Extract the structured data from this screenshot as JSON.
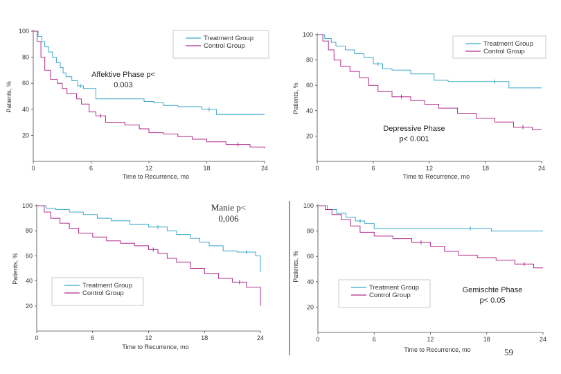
{
  "page_number": "59",
  "colors": {
    "treatment": "#3aa7c9",
    "control": "#b02a8a",
    "divider": "#2b8fa8",
    "axis": "#444444",
    "legend_border": "#c8c8c8"
  },
  "chart_data": [
    {
      "type": "line",
      "subtype": "kaplan-meier",
      "title": "Affektive Phase",
      "annotation_lines": [
        "Affektive Phase p<",
        "0.003"
      ],
      "xlabel": "Time to Recurrence, mo",
      "ylabel": "Patients, %",
      "xlim": [
        0,
        24
      ],
      "ylim": [
        0,
        100
      ],
      "xticks": [
        "0",
        "6",
        "12",
        "18",
        "24"
      ],
      "yticks": [
        "100",
        "80",
        "60",
        "40",
        "20"
      ],
      "legend": [
        "Treatment Group",
        "Control Group"
      ],
      "legend_position": "top-right",
      "series": [
        {
          "name": "Treatment Group",
          "x": [
            0,
            0.5,
            0.9,
            1.2,
            1.6,
            2.0,
            2.4,
            2.8,
            3.1,
            3.4,
            4.0,
            4.6,
            5.2,
            6.5,
            8.0,
            11.5,
            12.5,
            13.5,
            15.0,
            17.5,
            19.0,
            24
          ],
          "y": [
            100,
            96,
            92,
            88,
            84,
            80,
            76,
            72,
            68,
            65,
            62,
            58,
            56,
            48,
            48,
            46,
            45,
            43,
            42,
            40,
            36,
            36
          ]
        },
        {
          "name": "Control Group",
          "x": [
            0,
            0.4,
            0.8,
            1.2,
            1.8,
            2.5,
            3.0,
            3.5,
            4.5,
            5.0,
            5.8,
            6.5,
            7.5,
            9.5,
            11.0,
            12.0,
            13.5,
            15.0,
            16.5,
            18.0,
            20.0,
            22.5,
            24
          ],
          "y": [
            100,
            92,
            80,
            70,
            63,
            60,
            56,
            52,
            48,
            44,
            38,
            35,
            30,
            28,
            25,
            22,
            21,
            19,
            17,
            15,
            13,
            11,
            10
          ]
        }
      ]
    },
    {
      "type": "line",
      "subtype": "kaplan-meier",
      "title": "Depressive Phase",
      "annotation_lines": [
        "Depressive Phase",
        "p< 0.001"
      ],
      "xlabel": "Time to Recurrence, mo",
      "ylabel": "Patients, %",
      "xlim": [
        0,
        24
      ],
      "ylim": [
        0,
        100
      ],
      "xticks": [
        "0",
        "6",
        "12",
        "18",
        "24"
      ],
      "yticks": [
        "100",
        "80",
        "60",
        "40",
        "20"
      ],
      "legend": [
        "Treatment Group",
        "Control Group"
      ],
      "legend_position": "top-right",
      "series": [
        {
          "name": "Treatment Group",
          "x": [
            0,
            0.8,
            1.5,
            2.0,
            3.0,
            4.0,
            5.0,
            6.0,
            7.0,
            8.0,
            10.0,
            12.5,
            14.0,
            17.5,
            20.5,
            24
          ],
          "y": [
            100,
            97,
            94,
            91,
            88,
            85,
            82,
            77,
            73,
            72,
            69,
            64,
            63,
            63,
            58,
            58
          ]
        },
        {
          "name": "Control Group",
          "x": [
            0,
            0.6,
            1.2,
            1.8,
            2.5,
            3.5,
            4.5,
            5.5,
            6.5,
            8.0,
            10.0,
            11.5,
            13.0,
            15.0,
            17.0,
            19.0,
            21.0,
            23.0,
            24
          ],
          "y": [
            100,
            95,
            88,
            80,
            75,
            71,
            66,
            60,
            55,
            51,
            48,
            45,
            42,
            38,
            34,
            31,
            27,
            25,
            25
          ]
        }
      ]
    },
    {
      "type": "line",
      "subtype": "kaplan-meier",
      "title": "Manie",
      "annotation_lines": [
        "Manie  p<",
        "0,006"
      ],
      "xlabel": "Time to Recurrence, mo",
      "ylabel": "Patients, %",
      "xlim": [
        0,
        24
      ],
      "ylim": [
        0,
        100
      ],
      "xticks": [
        "0",
        "6",
        "12",
        "18",
        "24"
      ],
      "yticks": [
        "100",
        "80",
        "60",
        "40",
        "20"
      ],
      "legend": [
        "Treatment Group",
        "Control Group"
      ],
      "legend_position": "bottom-left",
      "series": [
        {
          "name": "Treatment Group",
          "x": [
            0,
            1.0,
            2.0,
            3.5,
            5.0,
            6.5,
            8.0,
            10.0,
            12.0,
            14.0,
            15.0,
            16.5,
            17.5,
            18.5,
            20.0,
            21.5,
            23.5,
            24
          ],
          "y": [
            100,
            98,
            97,
            95,
            93,
            90,
            88,
            85,
            83,
            80,
            77,
            74,
            71,
            68,
            64,
            63,
            60,
            47
          ]
        },
        {
          "name": "Control Group",
          "x": [
            0,
            0.8,
            1.5,
            2.5,
            3.5,
            4.5,
            6.0,
            7.5,
            9.0,
            10.5,
            12.0,
            13.0,
            14.0,
            15.0,
            16.5,
            18.0,
            19.5,
            21.0,
            22.5,
            24
          ],
          "y": [
            100,
            95,
            90,
            86,
            82,
            78,
            75,
            72,
            70,
            68,
            65,
            62,
            58,
            55,
            50,
            46,
            42,
            39,
            35,
            20
          ]
        }
      ]
    },
    {
      "type": "line",
      "subtype": "kaplan-meier",
      "title": "Gemischte Phase",
      "annotation_lines": [
        "Gemischte Phase",
        "p< 0.05"
      ],
      "xlabel": "Time to Recurrence, mo",
      "ylabel": "Patients, %",
      "xlim": [
        0,
        24
      ],
      "ylim": [
        0,
        100
      ],
      "xticks": [
        "0",
        "6",
        "12",
        "18",
        "24"
      ],
      "yticks": [
        "100",
        "80",
        "60",
        "40",
        "20"
      ],
      "legend": [
        "Treatment Group",
        "Control Group"
      ],
      "legend_position": "bottom-left",
      "series": [
        {
          "name": "Treatment Group",
          "x": [
            0,
            1.0,
            2.0,
            3.0,
            4.0,
            5.0,
            6.0,
            14.0,
            18.5,
            24
          ],
          "y": [
            100,
            97,
            94,
            91,
            88,
            86,
            82,
            82,
            80,
            80
          ]
        },
        {
          "name": "Control Group",
          "x": [
            0,
            0.8,
            1.5,
            2.5,
            3.5,
            4.5,
            6.0,
            8.0,
            10.0,
            12.0,
            13.5,
            15.0,
            17.0,
            19.0,
            21.0,
            23.0,
            24
          ],
          "y": [
            100,
            97,
            93,
            89,
            84,
            79,
            76,
            74,
            71,
            68,
            64,
            61,
            59,
            57,
            54,
            51,
            51
          ]
        }
      ]
    }
  ]
}
